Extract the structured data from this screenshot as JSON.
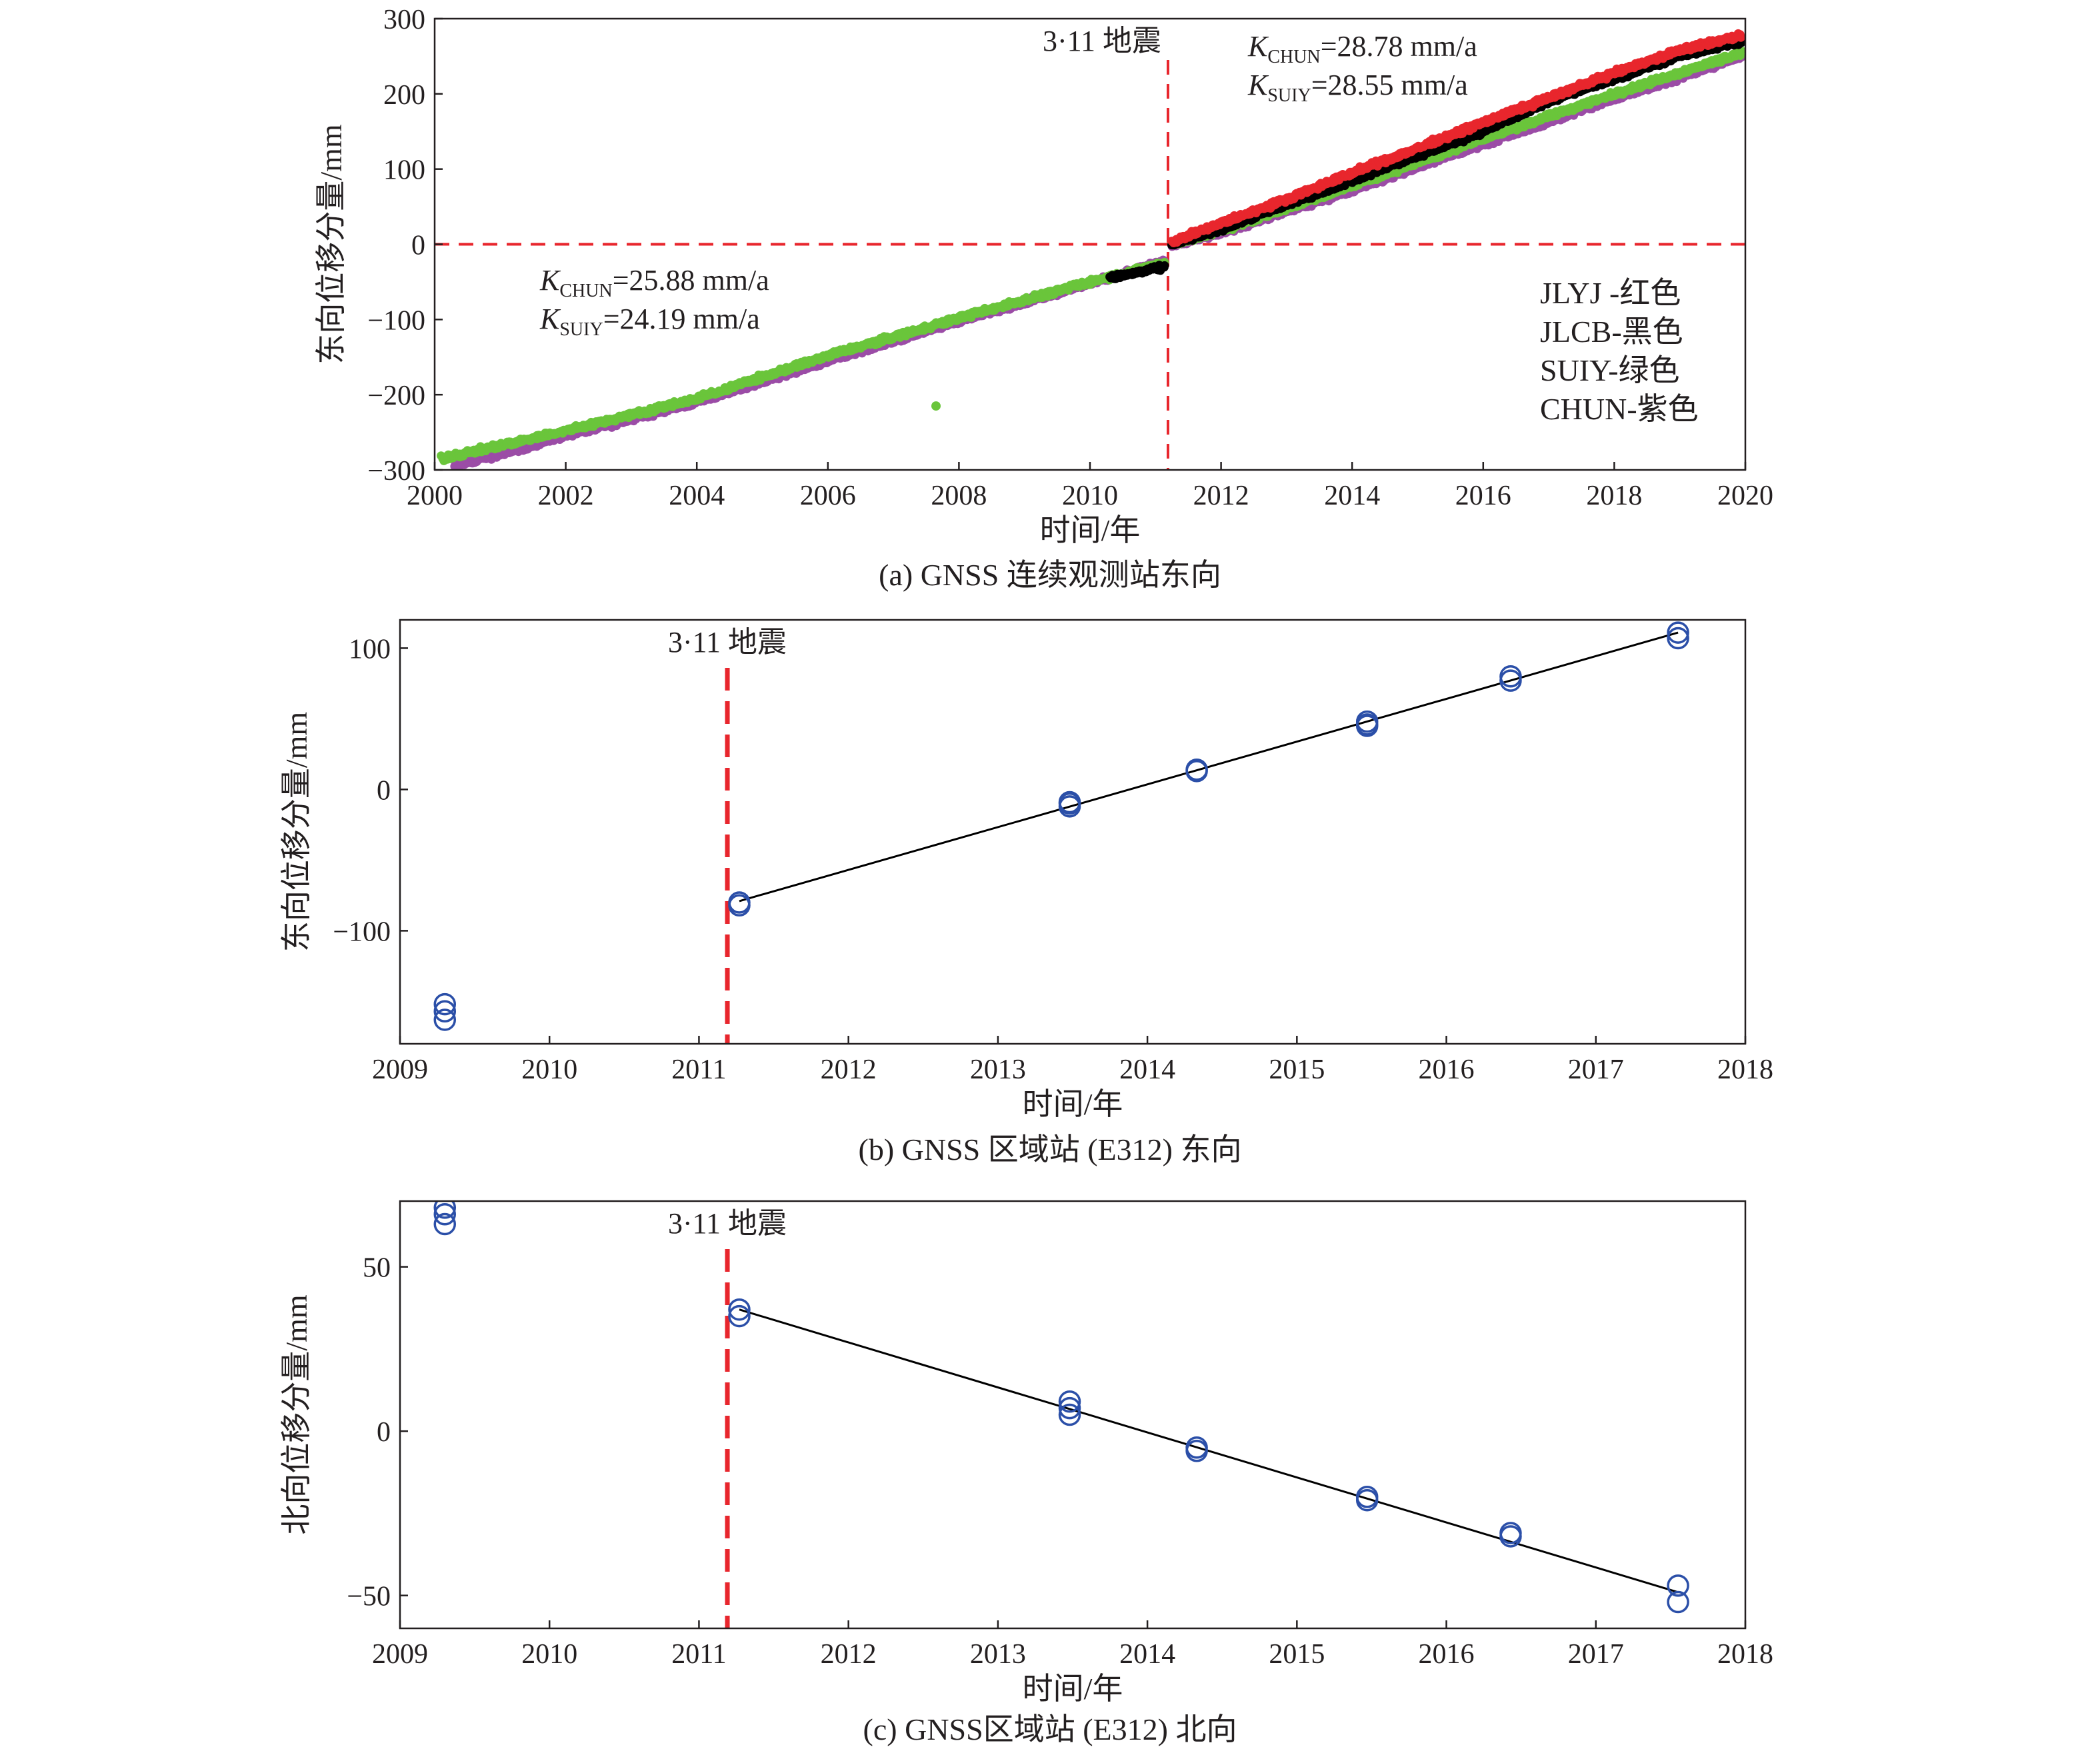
{
  "chart_data": [
    {
      "id": "a",
      "type": "scatter",
      "caption": "(a) GNSS 连续观测站东向",
      "xlabel": "时间/年",
      "ylabel": "东向位移分量/mm",
      "xlim": [
        2000,
        2020
      ],
      "ylim": [
        -300,
        300
      ],
      "xticks": [
        2000,
        2002,
        2004,
        2006,
        2008,
        2010,
        2012,
        2014,
        2016,
        2018,
        2020
      ],
      "yticks": [
        -300,
        -200,
        -100,
        0,
        100,
        200,
        300
      ],
      "xtick_labels": [
        "2000",
        "2002",
        "2004",
        "2006",
        "2008",
        "2010",
        "2012",
        "2014",
        "2016",
        "2018",
        "2020"
      ],
      "ytick_labels": [
        "−300",
        "−200",
        "−100",
        "0",
        "100",
        "200",
        "300"
      ],
      "grid": false,
      "earthquake": {
        "x": 2011.19,
        "label": "3·11 地震",
        "color": "#e8262d"
      },
      "zero_line": {
        "y": 0,
        "color": "#e8262d"
      },
      "rates_before": [
        {
          "k": "K",
          "sub": "CHUN",
          "value": "=25.88 mm/a"
        },
        {
          "k": "K",
          "sub": "SUIY",
          "value": "=24.19 mm/a"
        }
      ],
      "rates_after": [
        {
          "k": "K",
          "sub": "CHUN",
          "value": "=28.78 mm/a"
        },
        {
          "k": "K",
          "sub": "SUIY",
          "value": "=28.55 mm/a"
        }
      ],
      "legend_position": "bottom-right",
      "legend": [
        "JLYJ -红色",
        "JLCB-黑色",
        "SUIY-绿色",
        "CHUN-紫色"
      ],
      "series": [
        {
          "name": "JLYJ",
          "color": "#e8262d",
          "segments": [
            [
              [
                2011.25,
                3
              ],
              [
                2012,
                28
              ],
              [
                2013,
                60
              ],
              [
                2014,
                95
              ],
              [
                2015,
                128
              ],
              [
                2016,
                162
              ],
              [
                2017,
                195
              ],
              [
                2018,
                228
              ],
              [
                2019,
                258
              ],
              [
                2019.95,
                278
              ]
            ]
          ]
        },
        {
          "name": "JLCB",
          "color": "#000000",
          "segments": [
            [
              [
                2010.3,
                -45
              ],
              [
                2011.15,
                -30
              ]
            ],
            [
              [
                2011.25,
                0
              ],
              [
                2012,
                20
              ],
              [
                2014,
                85
              ],
              [
                2016,
                150
              ],
              [
                2017,
                190
              ],
              [
                2018,
                220
              ],
              [
                2019,
                250
              ],
              [
                2019.95,
                270
              ]
            ]
          ]
        },
        {
          "name": "SUIY",
          "color": "#6ac53b",
          "segments": [
            [
              [
                2000.1,
                -285
              ],
              [
                2002,
                -248
              ],
              [
                2004,
                -205
              ],
              [
                2006,
                -148
              ],
              [
                2008,
                -98
              ],
              [
                2010,
                -50
              ],
              [
                2011.15,
                -25
              ]
            ],
            [
              [
                2011.25,
                0
              ],
              [
                2012,
                18
              ],
              [
                2014,
                78
              ],
              [
                2016,
                140
              ],
              [
                2018,
                200
              ],
              [
                2019.95,
                255
              ]
            ]
          ],
          "outliers": [
            [
              2007.65,
              -215
            ]
          ]
        },
        {
          "name": "CHUN",
          "color": "#9b4ca6",
          "segments": [
            [
              [
                2000.3,
                -295
              ],
              [
                2002,
                -255
              ],
              [
                2004,
                -210
              ],
              [
                2006,
                -155
              ],
              [
                2008,
                -102
              ],
              [
                2010,
                -52
              ],
              [
                2011.15,
                -22
              ]
            ],
            [
              [
                2011.25,
                -2
              ],
              [
                2012,
                15
              ],
              [
                2014,
                72
              ],
              [
                2016,
                133
              ],
              [
                2018,
                193
              ],
              [
                2019.95,
                250
              ]
            ]
          ]
        }
      ]
    },
    {
      "id": "b",
      "type": "scatter",
      "caption": "(b) GNSS 区域站 (E312) 东向",
      "xlabel": "时间/年",
      "ylabel": "东向位移分量/mm",
      "xlim": [
        2009,
        2018
      ],
      "ylim": [
        -180,
        120
      ],
      "xticks": [
        2009,
        2010,
        2011,
        2012,
        2013,
        2014,
        2015,
        2016,
        2017,
        2018
      ],
      "yticks": [
        -100,
        0,
        100
      ],
      "xtick_labels": [
        "2009",
        "2010",
        "2011",
        "2012",
        "2013",
        "2014",
        "2015",
        "2016",
        "2017",
        "2018"
      ],
      "ytick_labels": [
        "−100",
        "0",
        "100"
      ],
      "grid": false,
      "earthquake": {
        "x": 2011.19,
        "label": "3·11 地震",
        "color": "#e8262d"
      },
      "marker_color": "#2b4fa8",
      "points": [
        [
          2009.3,
          -157
        ],
        [
          2009.3,
          -163
        ],
        [
          2009.3,
          -152
        ],
        [
          2011.27,
          -80
        ],
        [
          2011.27,
          -82
        ],
        [
          2013.48,
          -9
        ],
        [
          2013.48,
          -12
        ],
        [
          2013.48,
          -10
        ],
        [
          2014.33,
          14
        ],
        [
          2014.33,
          13
        ],
        [
          2015.47,
          48
        ],
        [
          2015.47,
          45
        ],
        [
          2015.47,
          46
        ],
        [
          2016.43,
          80
        ],
        [
          2016.43,
          77
        ],
        [
          2017.55,
          111
        ],
        [
          2017.55,
          107
        ]
      ],
      "fit_line": [
        [
          2011.27,
          -79
        ],
        [
          2017.55,
          111
        ]
      ]
    },
    {
      "id": "c",
      "type": "scatter",
      "caption": "(c) GNSS区域站 (E312) 北向",
      "xlabel": "时间/年",
      "ylabel": "北向位移分量/mm",
      "xlim": [
        2009,
        2018
      ],
      "ylim": [
        -60,
        70
      ],
      "xticks": [
        2009,
        2010,
        2011,
        2012,
        2013,
        2014,
        2015,
        2016,
        2017,
        2018
      ],
      "yticks": [
        -50,
        0,
        50
      ],
      "xtick_labels": [
        "2009",
        "2010",
        "2011",
        "2012",
        "2013",
        "2014",
        "2015",
        "2016",
        "2017",
        "2018"
      ],
      "ytick_labels": [
        "−50",
        "0",
        "50"
      ],
      "grid": false,
      "earthquake": {
        "x": 2011.19,
        "label": "3·11 地震",
        "color": "#e8262d"
      },
      "marker_color": "#2b4fa8",
      "points": [
        [
          2009.3,
          68
        ],
        [
          2009.3,
          66
        ],
        [
          2009.3,
          63
        ],
        [
          2011.27,
          37
        ],
        [
          2011.27,
          35
        ],
        [
          2013.48,
          9
        ],
        [
          2013.48,
          7
        ],
        [
          2013.48,
          5
        ],
        [
          2014.33,
          -5
        ],
        [
          2014.33,
          -6
        ],
        [
          2015.47,
          -20
        ],
        [
          2015.47,
          -21
        ],
        [
          2016.43,
          -32
        ],
        [
          2016.43,
          -31
        ],
        [
          2017.55,
          -47
        ],
        [
          2017.55,
          -52
        ]
      ],
      "fit_line": [
        [
          2011.27,
          37
        ],
        [
          2017.55,
          -49
        ]
      ]
    }
  ]
}
